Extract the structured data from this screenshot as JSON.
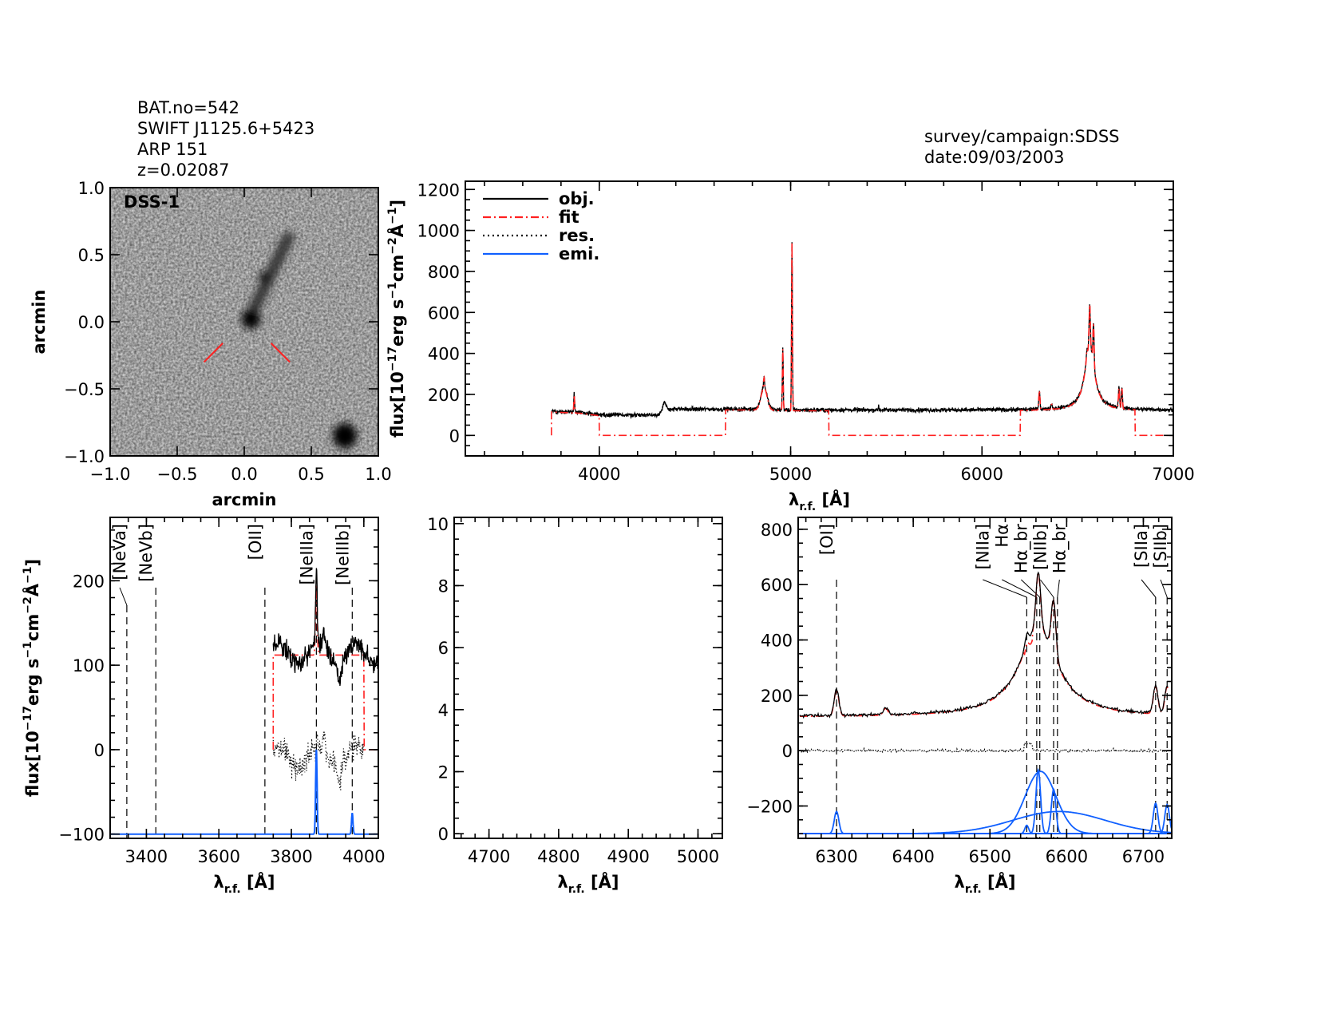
{
  "header": {
    "lines": [
      "BAT.no=542",
      "SWIFT J1125.6+5423",
      "ARP 151",
      "z=0.02087"
    ],
    "survey": "survey/campaign:SDSS",
    "date": "date:09/03/2003"
  },
  "colors": {
    "obj": "#000000",
    "fit": "#ff2020",
    "res": "#000000",
    "emi": "#1060ff",
    "marker_red": "#ff2020",
    "marker_black": "#000000"
  },
  "chart_data": [
    {
      "id": "image",
      "type": "image",
      "label": "DSS-1",
      "xlabel": "arcmin",
      "ylabel": "arcmin",
      "xlim": [
        -1,
        1
      ],
      "ylim": [
        -1,
        1
      ],
      "xticks": [
        -1,
        -0.5,
        0,
        0.5,
        1
      ],
      "xticklabels": [
        "−1.0",
        "−0.5",
        "0.0",
        "0.5",
        "1.0"
      ],
      "yticks": [
        -1,
        -0.5,
        0,
        0.5,
        1
      ],
      "yticklabels": [
        "−1.0",
        "−0.5",
        "0.0",
        "0.5",
        "1.0"
      ],
      "sources": [
        {
          "x": 0.05,
          "y": 0.02,
          "r": 0.07,
          "darkness": 1.0
        },
        {
          "x": 0.15,
          "y": 0.33,
          "r": 0.04,
          "darkness": 0.9
        },
        {
          "x": 0.75,
          "y": -0.85,
          "r": 0.09,
          "darkness": 1.0
        }
      ],
      "marker_segments": [
        [
          [
            -0.3,
            -0.3
          ],
          [
            -0.16,
            -0.16
          ]
        ],
        [
          [
            0.2,
            -0.16
          ],
          [
            0.34,
            -0.3
          ]
        ]
      ]
    },
    {
      "id": "full-spectrum",
      "type": "line",
      "xlabel": {
        "main": "λ",
        "sub": "r.f.",
        "unit": " [Å]"
      },
      "ylabel": [
        {
          "t": "flux[10"
        },
        {
          "t": "−17",
          "sup": true
        },
        {
          "t": "erg s"
        },
        {
          "t": "−1",
          "sup": true
        },
        {
          "t": "cm"
        },
        {
          "t": "−2",
          "sup": true
        },
        {
          "t": "Å"
        },
        {
          "t": "−1",
          "sup": true
        },
        {
          "t": "]"
        }
      ],
      "xlim": [
        3300,
        7000
      ],
      "ylim": [
        -100,
        1240
      ],
      "xticks": [
        4000,
        5000,
        6000,
        7000
      ],
      "xticklabels": [
        "4000",
        "5000",
        "6000",
        "7000"
      ],
      "xminor": 200,
      "yticks": [
        0,
        200,
        400,
        600,
        800,
        1000,
        1200
      ],
      "yticklabels": [
        "0",
        "200",
        "400",
        "600",
        "800",
        "1000",
        "1200"
      ],
      "yminor": 50,
      "legend_position": "top-left",
      "legend": [
        {
          "name": "obj.",
          "style": "solid",
          "color": "#000000"
        },
        {
          "name": "fit",
          "style": "dash-dot",
          "color": "#ff2020"
        },
        {
          "name": "res.",
          "style": "dotted",
          "color": "#000000"
        },
        {
          "name": "emi.",
          "style": "solid",
          "color": "#1060ff"
        }
      ],
      "range": [
        3750,
        7000
      ],
      "continuum": [
        [
          3750,
          118
        ],
        [
          3900,
          112
        ],
        [
          4000,
          100
        ],
        [
          4300,
          100
        ],
        [
          4350,
          128
        ],
        [
          4800,
          128
        ],
        [
          5000,
          124
        ],
        [
          6000,
          124
        ],
        [
          7000,
          124
        ]
      ],
      "lines": [
        {
          "center": 3869,
          "amp": 90,
          "sigma": 2.2
        },
        {
          "center": 4340,
          "amp": 35,
          "sigma": 8
        },
        {
          "center": 4861,
          "amp": 110,
          "sigma": 16
        },
        {
          "center": 4861,
          "amp": 50,
          "sigma": 2.5
        },
        {
          "center": 4959,
          "amp": 300,
          "sigma": 2.2
        },
        {
          "center": 5007,
          "amp": 820,
          "sigma": 2.2
        },
        {
          "center": 5460,
          "amp": 25,
          "sigma": 1.5
        },
        {
          "center": 6300,
          "amp": 95,
          "sigma": 3
        },
        {
          "center": 6364,
          "amp": 25,
          "sigma": 3
        },
        {
          "center": 6548,
          "amp": 40,
          "sigma": 2.5
        },
        {
          "center": 6563,
          "amp": 200,
          "sigma": 3
        },
        {
          "center": 6583,
          "amp": 200,
          "sigma": 3
        },
        {
          "center": 6716,
          "amp": 100,
          "sigma": 3
        },
        {
          "center": 6731,
          "amp": 100,
          "sigma": 3
        }
      ],
      "broad_lorentzian": {
        "center": 6563,
        "amp": 320,
        "hwhm": 30
      },
      "fit_windows": [
        [
          3750,
          4000
        ],
        [
          4660,
          5200
        ],
        [
          6200,
          6800
        ]
      ]
    },
    {
      "id": "neon-oii-region",
      "type": "line",
      "xlabel": {
        "main": "λ",
        "sub": "r.f.",
        "unit": " [Å]"
      },
      "ylabel": [
        {
          "t": "flux[10"
        },
        {
          "t": "−17",
          "sup": true
        },
        {
          "t": "erg s"
        },
        {
          "t": "−1",
          "sup": true
        },
        {
          "t": "cm"
        },
        {
          "t": "−2",
          "sup": true
        },
        {
          "t": "Å"
        },
        {
          "t": "−1",
          "sup": true
        },
        {
          "t": "]"
        }
      ],
      "xlim": [
        3300,
        4040
      ],
      "ylim": [
        -105,
        275
      ],
      "xticks": [
        3400,
        3600,
        3800,
        4000
      ],
      "xticklabels": [
        "3400",
        "3600",
        "3800",
        "4000"
      ],
      "xminor": 50,
      "yticks": [
        -100,
        0,
        100,
        200
      ],
      "yticklabels": [
        "−100",
        "0",
        "100",
        "200"
      ],
      "yminor": 20,
      "range": [
        3750,
        4040
      ],
      "continuum_level": 114,
      "fit_level": 112,
      "fit_windows": [
        [
          3750,
          4000
        ]
      ],
      "emi_baseline": -100,
      "emission": [
        {
          "center": 3869,
          "amp": 100,
          "sigma": 2
        },
        {
          "center": 3968,
          "amp": 25,
          "sigma": 2
        }
      ],
      "markers": [
        {
          "label": "[NeVa]",
          "wave": 3346,
          "color": "#ff2020"
        },
        {
          "label": "[NeVb]",
          "wave": 3426,
          "color": "#ff2020"
        },
        {
          "label": "[OII]",
          "wave": 3727,
          "color": "#ff2020"
        },
        {
          "label": "[NeIIIa]",
          "wave": 3869,
          "color": "#000000"
        },
        {
          "label": "[NeIIIb]",
          "wave": 3968,
          "color": "#ff2020"
        }
      ]
    },
    {
      "id": "hbeta-oiii-region",
      "type": "line",
      "xlabel": {
        "main": "λ",
        "sub": "r.f.",
        "unit": " [Å]"
      },
      "xlim": [
        4650,
        5035
      ],
      "ylim": [
        -0.15,
        10.2
      ],
      "xticks": [
        4700,
        4800,
        4900,
        5000
      ],
      "xticklabels": [
        "4700",
        "4800",
        "4900",
        "5000"
      ],
      "xminor": 20,
      "yticks": [
        0,
        2,
        4,
        6,
        8,
        10
      ],
      "yticklabels": [
        "0",
        "2",
        "4",
        "6",
        "8",
        "10"
      ],
      "yminor": 0.5
    },
    {
      "id": "halpha-region",
      "type": "line",
      "xlabel": {
        "main": "λ",
        "sub": "r.f.",
        "unit": " [Å]"
      },
      "xlim": [
        6250,
        6737
      ],
      "ylim": [
        -317,
        843
      ],
      "xticks": [
        6300,
        6400,
        6500,
        6600,
        6700
      ],
      "xticklabels": [
        "6300",
        "6400",
        "6500",
        "6600",
        "6700"
      ],
      "xminor": 20,
      "yticks": [
        -200,
        0,
        200,
        400,
        600,
        800
      ],
      "yticklabels": [
        "−200",
        "0",
        "200",
        "400",
        "600",
        "800"
      ],
      "yminor": 50,
      "range": [
        6252,
        6732
      ],
      "emi_baseline": -300,
      "emission": [
        {
          "center": 6300,
          "amp": 80,
          "sigma": 3
        },
        {
          "center": 6548,
          "amp": 30,
          "sigma": 2.5
        },
        {
          "center": 6563,
          "amp": 230,
          "sigma": 3
        },
        {
          "center": 6566,
          "amp": 225,
          "sigma": 20
        },
        {
          "center": 6590,
          "amp": 80,
          "sigma": 60
        },
        {
          "center": 6583,
          "amp": 160,
          "sigma": 3
        },
        {
          "center": 6716,
          "amp": 110,
          "sigma": 3
        },
        {
          "center": 6731,
          "amp": 105,
          "sigma": 3
        }
      ],
      "markers": [
        {
          "label": "[OI]",
          "wave": 6300,
          "color": "#000000"
        },
        {
          "label": "[NIIa]",
          "wave": 6548,
          "color": "#000000"
        },
        {
          "label": "Hα",
          "wave": 6561,
          "color": "#000000"
        },
        {
          "label": "Hα_br",
          "wave": 6565,
          "color": "#000000"
        },
        {
          "label": "[NIIb]",
          "wave": 6583,
          "color": "#000000"
        },
        {
          "label": "Hα_br",
          "wave": 6588,
          "color": "#000000"
        },
        {
          "label": "[SIIa]",
          "wave": 6716,
          "color": "#000000"
        },
        {
          "label": "[SIIb]",
          "wave": 6731,
          "color": "#000000"
        }
      ]
    }
  ]
}
